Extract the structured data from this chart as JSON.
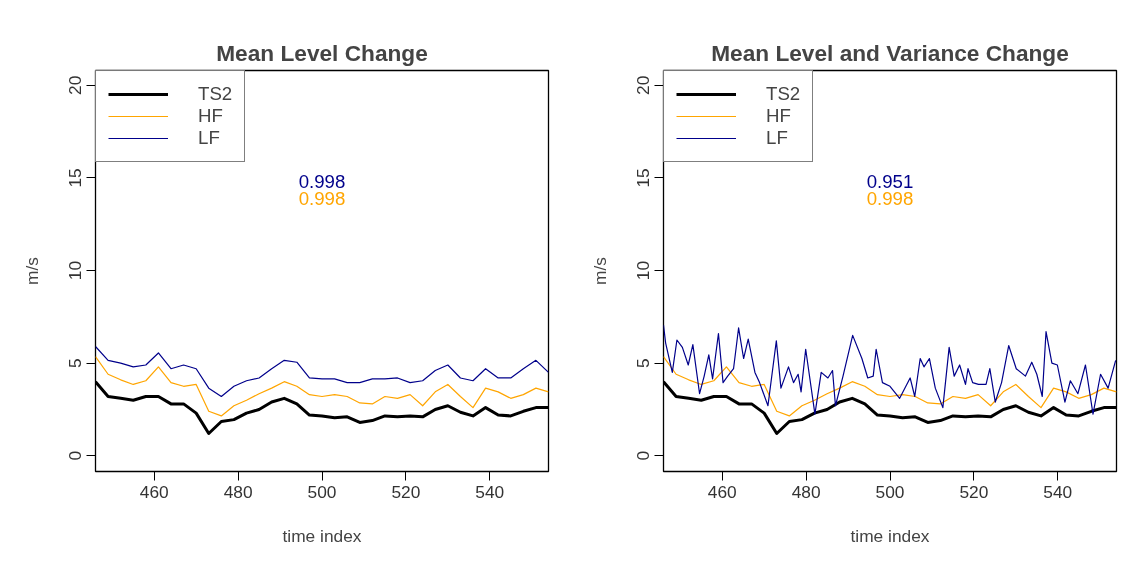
{
  "chart_data": [
    {
      "type": "line",
      "title": "Mean Level Change",
      "xlabel": "time index",
      "ylabel": "m/s",
      "x": [
        446,
        449,
        452,
        455,
        458,
        461,
        464,
        467,
        470,
        473,
        476,
        479,
        482,
        485,
        488,
        491,
        494,
        497,
        500,
        503,
        506,
        509,
        512,
        515,
        518,
        521,
        524,
        527,
        530,
        533,
        536,
        539,
        542,
        545,
        548,
        551,
        554
      ],
      "series": [
        {
          "name": "TS2",
          "color": "#000000",
          "values": [
            4.0,
            3.2,
            3.1,
            3.0,
            3.2,
            3.2,
            2.8,
            2.8,
            2.3,
            1.2,
            1.85,
            1.95,
            2.3,
            2.5,
            2.9,
            3.1,
            2.8,
            2.2,
            2.15,
            2.05,
            2.1,
            1.8,
            1.9,
            2.15,
            2.1,
            2.15,
            2.1,
            2.5,
            2.7,
            2.35,
            2.15,
            2.6,
            2.2,
            2.15,
            2.4,
            2.6,
            2.6
          ]
        },
        {
          "name": "HF",
          "color": "#ffa500",
          "values": [
            5.35,
            4.4,
            4.1,
            3.85,
            4.05,
            4.8,
            3.95,
            3.75,
            3.85,
            2.4,
            2.15,
            2.7,
            3.0,
            3.35,
            3.65,
            4.0,
            3.75,
            3.3,
            3.2,
            3.3,
            3.2,
            2.85,
            2.8,
            3.2,
            3.1,
            3.3,
            2.7,
            3.45,
            3.85,
            3.2,
            2.6,
            3.65,
            3.45,
            3.1,
            3.3,
            3.65,
            3.45
          ]
        },
        {
          "name": "LF",
          "color": "#00008b",
          "values": [
            5.9,
            5.15,
            5.0,
            4.8,
            4.9,
            5.55,
            4.7,
            4.9,
            4.7,
            3.65,
            3.2,
            3.75,
            4.05,
            4.2,
            4.7,
            5.15,
            5.05,
            4.2,
            4.15,
            4.15,
            3.95,
            3.95,
            4.15,
            4.15,
            4.2,
            3.95,
            4.05,
            4.6,
            4.9,
            4.2,
            4.05,
            4.7,
            4.2,
            4.2,
            4.7,
            5.15,
            4.5
          ]
        }
      ],
      "annotations": [
        "0.998",
        "0.998"
      ],
      "xlim": [
        446,
        554
      ],
      "ylim": [
        -0.85,
        20.8
      ],
      "xticks": [
        460,
        480,
        500,
        520,
        540
      ],
      "yticks": [
        0,
        5,
        10,
        15,
        20
      ],
      "legend": "top left",
      "grid": false
    },
    {
      "type": "line",
      "title": "Mean Level and Variance Change",
      "xlabel": "time index",
      "ylabel": "m/s",
      "x": [
        446,
        449,
        452,
        455,
        458,
        461,
        464,
        467,
        470,
        473,
        476,
        479,
        482,
        485,
        488,
        491,
        494,
        497,
        500,
        503,
        506,
        509,
        512,
        515,
        518,
        521,
        524,
        527,
        530,
        533,
        536,
        539,
        542,
        545,
        548,
        551,
        554
      ],
      "series": [
        {
          "name": "TS2",
          "color": "#000000",
          "values": [
            4.0,
            3.2,
            3.1,
            3.0,
            3.2,
            3.2,
            2.8,
            2.8,
            2.3,
            1.2,
            1.85,
            1.95,
            2.3,
            2.5,
            2.9,
            3.1,
            2.8,
            2.2,
            2.15,
            2.05,
            2.1,
            1.8,
            1.9,
            2.15,
            2.1,
            2.15,
            2.1,
            2.5,
            2.7,
            2.35,
            2.15,
            2.6,
            2.2,
            2.15,
            2.4,
            2.6,
            2.6
          ]
        },
        {
          "name": "HF",
          "color": "#ffa500",
          "values": [
            5.35,
            4.4,
            4.1,
            3.85,
            4.05,
            4.8,
            3.95,
            3.75,
            3.85,
            2.4,
            2.15,
            2.7,
            3.0,
            3.35,
            3.65,
            4.0,
            3.75,
            3.3,
            3.2,
            3.3,
            3.2,
            2.85,
            2.8,
            3.2,
            3.1,
            3.3,
            2.7,
            3.45,
            3.85,
            3.2,
            2.6,
            3.65,
            3.45,
            3.1,
            3.3,
            3.65,
            3.45
          ]
        },
        {
          "name": "LF",
          "color": "#00008b",
          "x": [
            446,
            446.5,
            448.1,
            449.2,
            450.5,
            451.9,
            453.0,
            454.6,
            455.7,
            456.8,
            457.7,
            459.1,
            460.2,
            461.3,
            462.7,
            463.9,
            465.1,
            466.2,
            467.8,
            468.9,
            470.9,
            472.9,
            474.0,
            475.8,
            477.0,
            478.1,
            478.8,
            479.9,
            482.1,
            483.6,
            485.2,
            486.3,
            487.0,
            488.8,
            491.1,
            493.3,
            494.7,
            496.0,
            496.7,
            498.2,
            500.0,
            502.3,
            504.8,
            505.9,
            507.2,
            508.1,
            509.4,
            510.8,
            512.6,
            514.1,
            515.3,
            516.6,
            518.0,
            518.6,
            519.7,
            521.1,
            522.9,
            523.8,
            525.1,
            526.6,
            528.3,
            530.1,
            532.3,
            533.8,
            535.0,
            536.3,
            537.2,
            538.6,
            539.9,
            541.7,
            543.0,
            544.8,
            546.6,
            548.4,
            550.2,
            552.0,
            553.8
          ],
          "values": [
            7.05,
            6.1,
            4.5,
            6.25,
            5.85,
            4.9,
            6.0,
            3.35,
            4.3,
            5.45,
            4.15,
            6.6,
            3.95,
            4.3,
            4.7,
            6.9,
            5.25,
            6.3,
            4.5,
            3.95,
            2.7,
            6.2,
            3.65,
            4.8,
            3.95,
            4.4,
            3.45,
            5.75,
            2.25,
            4.5,
            4.2,
            4.6,
            2.7,
            4.3,
            6.5,
            5.25,
            4.2,
            4.3,
            5.75,
            3.95,
            3.75,
            3.1,
            4.2,
            3.2,
            5.25,
            4.8,
            5.25,
            3.65,
            2.6,
            5.85,
            4.3,
            4.9,
            3.85,
            4.7,
            3.95,
            3.85,
            3.85,
            4.7,
            2.9,
            3.95,
            5.95,
            4.7,
            4.3,
            5.05,
            4.4,
            3.2,
            6.7,
            5.0,
            4.9,
            2.9,
            4.05,
            3.35,
            4.9,
            2.25,
            4.4,
            3.65,
            5.15
          ]
        }
      ],
      "annotations": [
        "0.951",
        "0.998"
      ],
      "xlim": [
        446,
        554
      ],
      "ylim": [
        -0.85,
        20.8
      ],
      "xticks": [
        460,
        480,
        500,
        520,
        540
      ],
      "yticks": [
        0,
        5,
        10,
        15,
        20
      ],
      "legend": "top left",
      "grid": false
    }
  ]
}
